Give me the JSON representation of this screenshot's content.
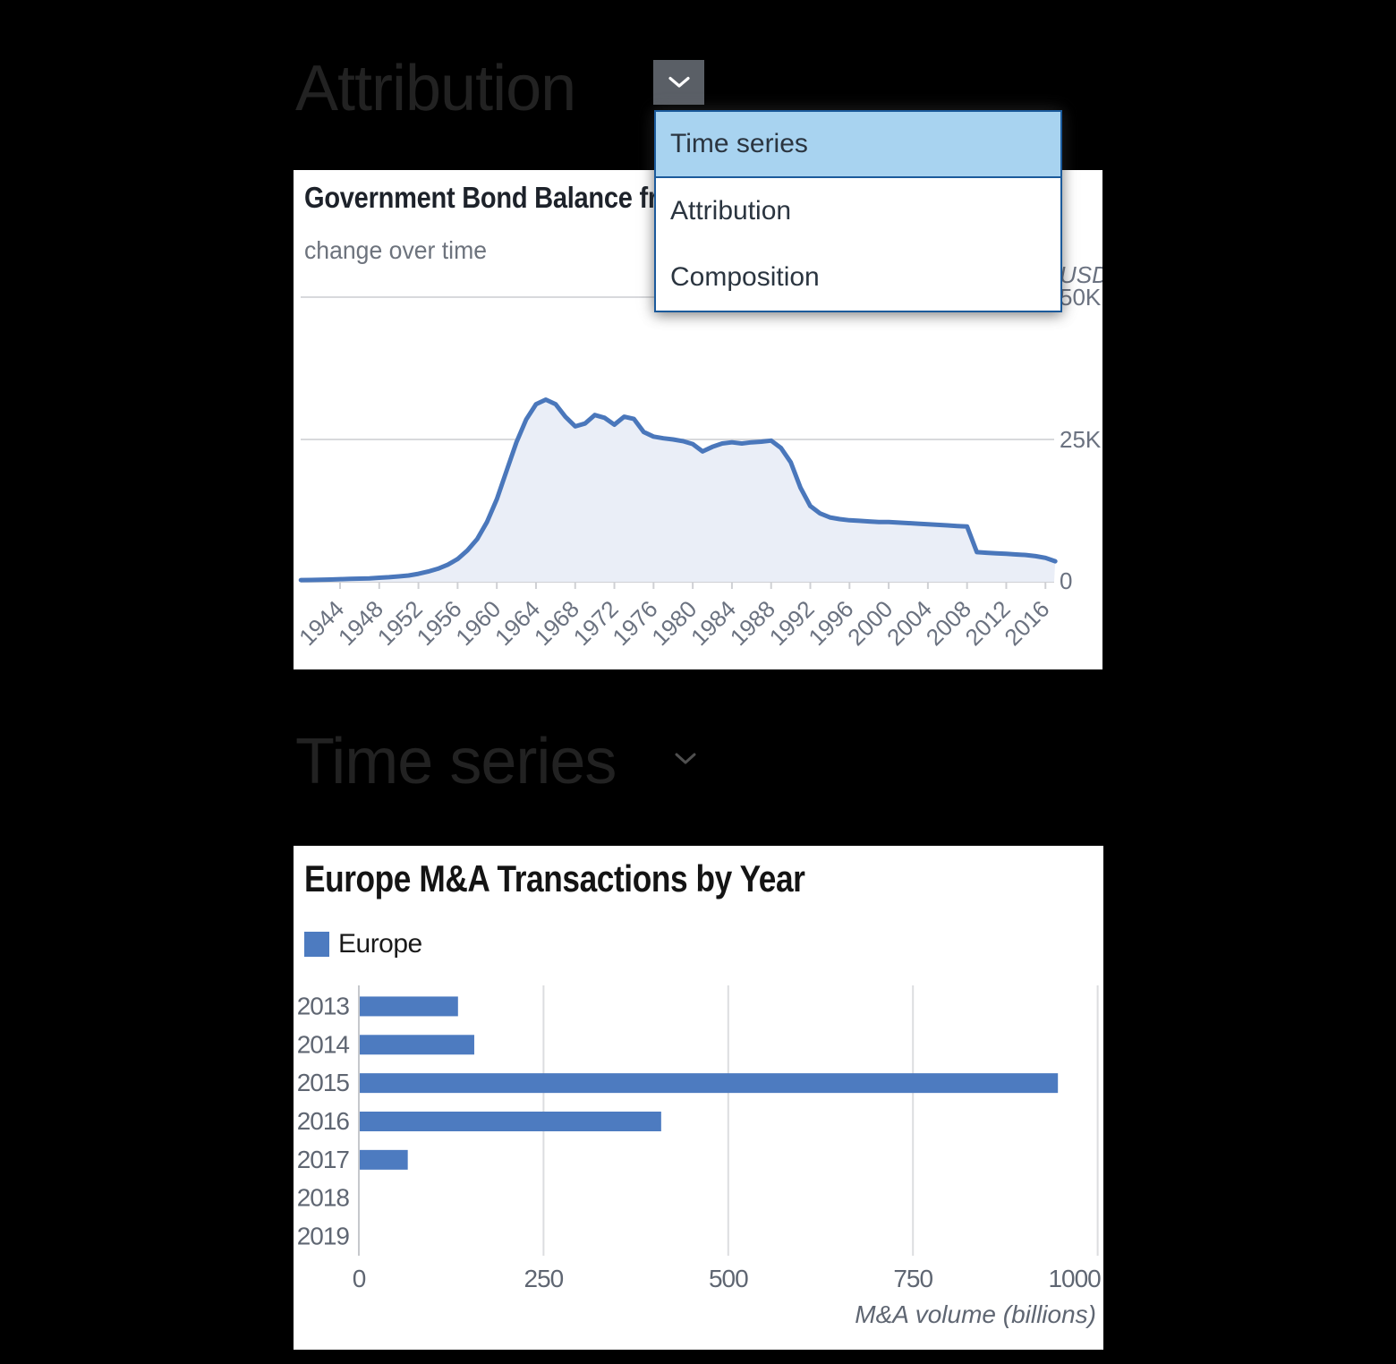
{
  "page": {
    "background_color": "#000000",
    "section1_heading": "Attribution",
    "section2_heading": "Time series"
  },
  "dropdown": {
    "items": [
      "Time series",
      "Attribution",
      "Composition"
    ],
    "selected_index": 0,
    "selected_label": "Time series",
    "highlight_color": "#a8d3f0",
    "border_color": "#1b5a9b"
  },
  "chart_data": [
    {
      "type": "area",
      "title": "Government Bond Balance fr",
      "subtitle": "change over time",
      "y_axis_unit": "USD",
      "y_ticks": [
        50000,
        25000,
        0
      ],
      "y_tick_labels": [
        "50K",
        "25K",
        "0"
      ],
      "ylim": [
        0,
        50000
      ],
      "x_ticks": [
        1944,
        1948,
        1952,
        1956,
        1960,
        1964,
        1968,
        1972,
        1976,
        1980,
        1984,
        1988,
        1992,
        1996,
        2000,
        2004,
        2008,
        2012,
        2016
      ],
      "line_color": "#4a77bb",
      "fill_color": "#eaeef7",
      "x": [
        1940,
        1941,
        1942,
        1943,
        1944,
        1945,
        1946,
        1947,
        1948,
        1949,
        1950,
        1951,
        1952,
        1953,
        1954,
        1955,
        1956,
        1957,
        1958,
        1959,
        1960,
        1961,
        1962,
        1963,
        1964,
        1965,
        1966,
        1967,
        1968,
        1969,
        1970,
        1971,
        1972,
        1973,
        1974,
        1975,
        1976,
        1977,
        1978,
        1979,
        1980,
        1981,
        1982,
        1983,
        1984,
        1985,
        1986,
        1987,
        1988,
        1989,
        1990,
        1991,
        1992,
        1993,
        1994,
        1995,
        1996,
        1997,
        1998,
        1999,
        2000,
        2001,
        2002,
        2003,
        2004,
        2005,
        2006,
        2007,
        2008,
        2009,
        2010,
        2011,
        2012,
        2013,
        2014,
        2015,
        2016,
        2017
      ],
      "values": [
        300,
        320,
        350,
        400,
        450,
        500,
        550,
        600,
        700,
        800,
        950,
        1100,
        1400,
        1800,
        2300,
        3000,
        4000,
        5500,
        7500,
        10500,
        14500,
        19500,
        24500,
        28500,
        31200,
        32000,
        31200,
        29000,
        27300,
        27800,
        29300,
        28800,
        27600,
        29000,
        28600,
        26300,
        25500,
        25200,
        25000,
        24700,
        24200,
        22900,
        23700,
        24300,
        24500,
        24300,
        24500,
        24600,
        24800,
        23500,
        21000,
        16500,
        13300,
        12000,
        11300,
        11000,
        10800,
        10700,
        10600,
        10500,
        10500,
        10400,
        10300,
        10200,
        10100,
        10000,
        9900,
        9800,
        9700,
        5200,
        5100,
        5000,
        4900,
        4800,
        4700,
        4500,
        4200,
        3600
      ]
    },
    {
      "type": "bar",
      "orientation": "horizontal",
      "title": "Europe M&A Transactions by Year",
      "legend": [
        "Europe"
      ],
      "categories": [
        "2013",
        "2014",
        "2015",
        "2016",
        "2017",
        "2018",
        "2019"
      ],
      "values": [
        133,
        155,
        945,
        408,
        65,
        0,
        0
      ],
      "x_ticks": [
        0,
        250,
        500,
        750,
        1000
      ],
      "x_tick_labels": [
        "0",
        "250",
        "500",
        "750",
        "1000"
      ],
      "xlim": [
        0,
        1000
      ],
      "xlabel": "M&A volume (billions)",
      "bar_color": "#4d7bc0"
    }
  ]
}
